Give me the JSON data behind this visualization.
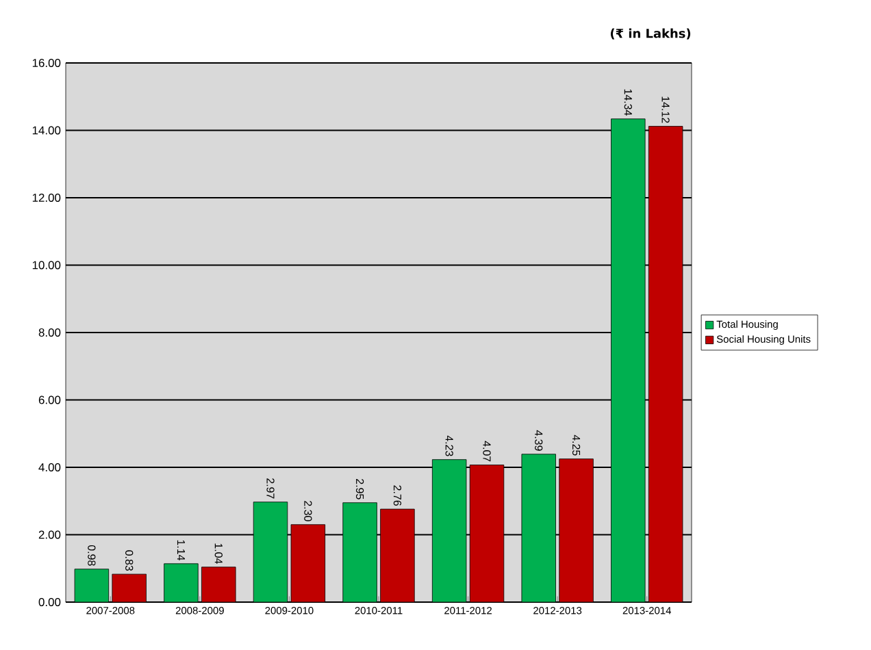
{
  "chart_data": {
    "type": "bar",
    "categories": [
      "2007-2008",
      "2008-2009",
      "2009-2010",
      "2010-2011",
      "2011-2012",
      "2012-2013",
      "2013-2014"
    ],
    "series": [
      {
        "name": "Total Housing",
        "color": "#00b050",
        "values": [
          0.98,
          1.14,
          2.97,
          2.95,
          4.23,
          4.39,
          14.34
        ],
        "value_labels": [
          "0.98",
          "1.14",
          "2.97",
          "2.95",
          "4.23",
          "4.39",
          "14.34"
        ]
      },
      {
        "name": "Social Housing Units",
        "color": "#c00000",
        "values": [
          0.83,
          1.04,
          2.3,
          2.76,
          4.07,
          4.25,
          14.12
        ],
        "value_labels": [
          "0.83",
          "1.04",
          "2.30",
          "2.76",
          "4.07",
          "4.25",
          "14.12"
        ]
      }
    ],
    "ylim": [
      0,
      16
    ],
    "yticks": [
      {
        "value": 0,
        "label": "0.00"
      },
      {
        "value": 2,
        "label": "2.00"
      },
      {
        "value": 4,
        "label": "4.00"
      },
      {
        "value": 6,
        "label": "6.00"
      },
      {
        "value": 8,
        "label": "8.00"
      },
      {
        "value": 10,
        "label": "10.00"
      },
      {
        "value": 12,
        "label": "12.00"
      },
      {
        "value": 14,
        "label": "14.00"
      },
      {
        "value": 16,
        "label": "16.00"
      }
    ],
    "grid": "y",
    "legend": "right",
    "annotations": [
      "(₹ in Lakhs)"
    ]
  }
}
